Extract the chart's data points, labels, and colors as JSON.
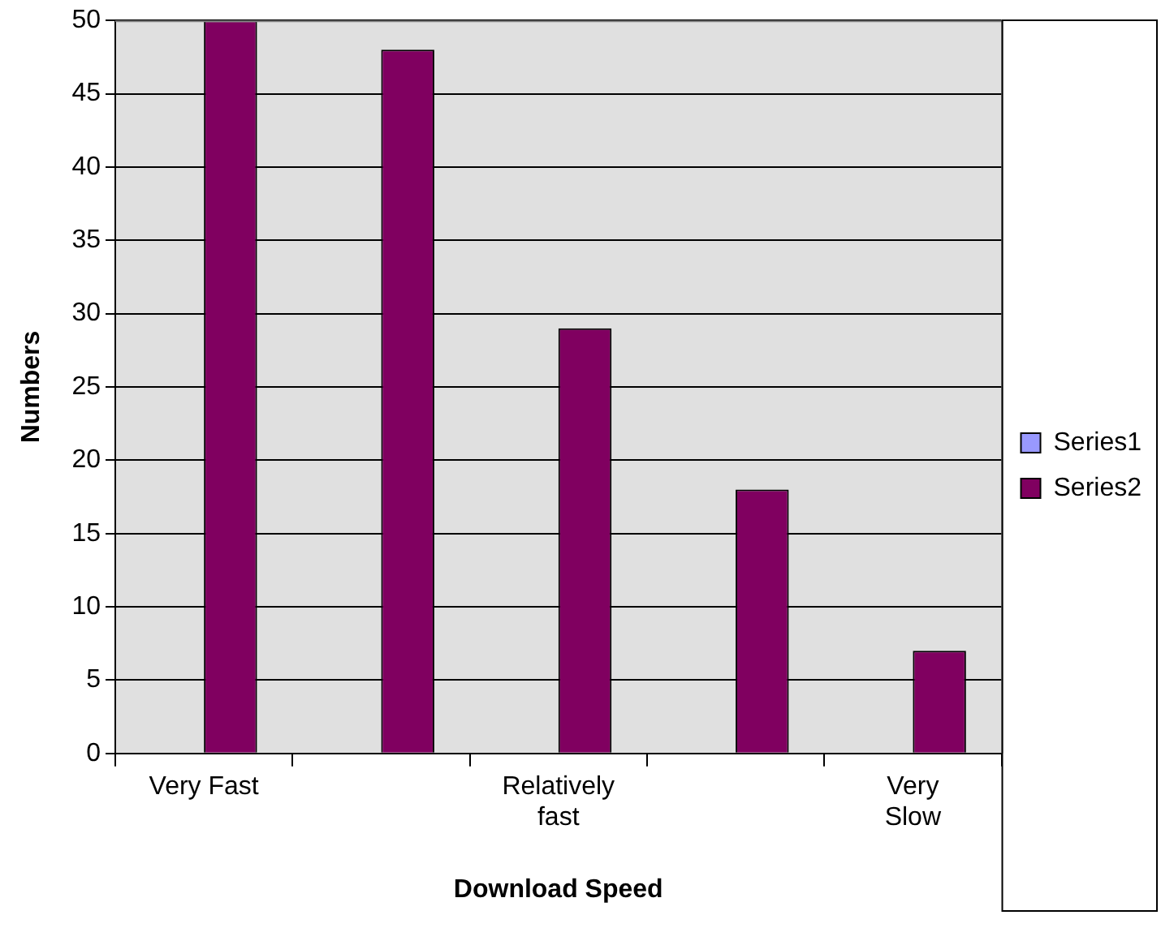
{
  "chart_data": {
    "type": "bar",
    "xlabel": "Download Speed",
    "ylabel": "Numbers",
    "categories": [
      "Very Fast",
      null,
      "Relatively fast",
      null,
      "Very Slow"
    ],
    "series": [
      {
        "name": "Series1",
        "color": "#9999ff",
        "values": [
          null,
          null,
          null,
          null,
          null
        ]
      },
      {
        "name": "Series2",
        "color": "#800060",
        "values": [
          50,
          48,
          29,
          18,
          7
        ]
      }
    ],
    "ylim": [
      0,
      50
    ],
    "yticks": [
      0,
      5,
      10,
      15,
      20,
      25,
      30,
      35,
      40,
      45,
      50
    ],
    "grid": "y",
    "legend": "right"
  }
}
